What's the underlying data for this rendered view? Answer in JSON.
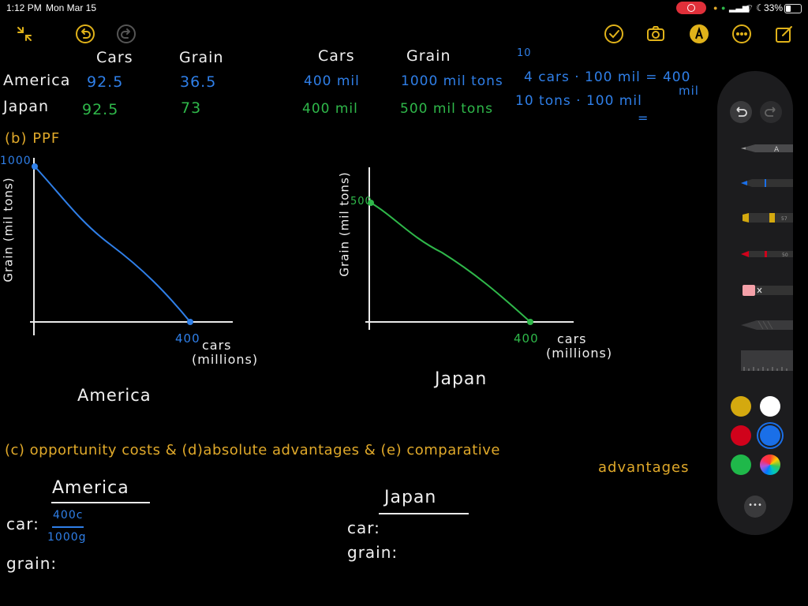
{
  "status_bar": {
    "time": "1:12 PM",
    "date": "Mon Mar 15",
    "battery": "33%",
    "battery_level": 0.33
  },
  "toolbar": {
    "left_icons": [
      "collapse-arrows-icon",
      "undo-icon",
      "redo-icon"
    ],
    "right_icons": [
      "markup-check-icon",
      "camera-icon",
      "pen-markup-icon",
      "more-ellipsis-icon",
      "compose-icon"
    ],
    "accent": "#e0b21a"
  },
  "note": {
    "table_headers": {
      "left_cars": "Cars",
      "left_grain": "Grain",
      "right_cars": "Cars",
      "right_grain": "Grain",
      "top_clip": "10"
    },
    "rows": [
      {
        "country": "America",
        "cars_time": "92.5",
        "grain_time": "36.5",
        "cars_total": "400 mil",
        "grain_total": "1000 mil tons"
      },
      {
        "country": "Japan",
        "cars_time": "92.5",
        "grain_time": "73",
        "cars_total": "400 mil",
        "grain_total": "500 mil tons"
      }
    ],
    "calc": {
      "line1": "4 cars · 100 mil = 400",
      "line1_cont": "mil",
      "line2": "10 tons · 100 mil",
      "line2_cont": "="
    },
    "section_b": "(b) PPF",
    "graph_america": {
      "y_label": "Grain (mil tons)",
      "y_tick": "1000",
      "x_tick": "400",
      "x_label_1": "cars",
      "x_label_2": "(millions)",
      "caption": "America"
    },
    "graph_japan": {
      "y_label": "Grain (mil tons)",
      "y_tick": "500",
      "x_tick": "400",
      "x_label_1": "cars",
      "x_label_2": "(millions)",
      "caption": "Japan"
    },
    "section_cde": {
      "line1": "(c) opportunity costs  &  (d)absolute advantages  &  (e) comparative",
      "line2": "advantages"
    },
    "oc_america": {
      "heading": "America",
      "car_label": "car:",
      "car_num": "400c",
      "car_den": "1000g",
      "grain_label": "grain:"
    },
    "oc_japan": {
      "heading": "Japan",
      "car_label": "car:",
      "grain_label": "grain:"
    }
  },
  "palette": {
    "tools": [
      "undo-icon",
      "redo-icon",
      "pencil-tool",
      "pen-tool",
      "highlighter-tool",
      "marker-tool",
      "eraser-tool",
      "lasso-tool",
      "ruler-tool"
    ],
    "tool_marks": {
      "pencil": "A",
      "highlighter": "57",
      "marker": "50"
    },
    "colors": [
      "#d4a90f",
      "#ffffff",
      "#d0021b",
      "#1a6fe8",
      "#1fb84a",
      "multicolor"
    ],
    "selected_color": "#1a6fe8",
    "more_label": "•••"
  }
}
